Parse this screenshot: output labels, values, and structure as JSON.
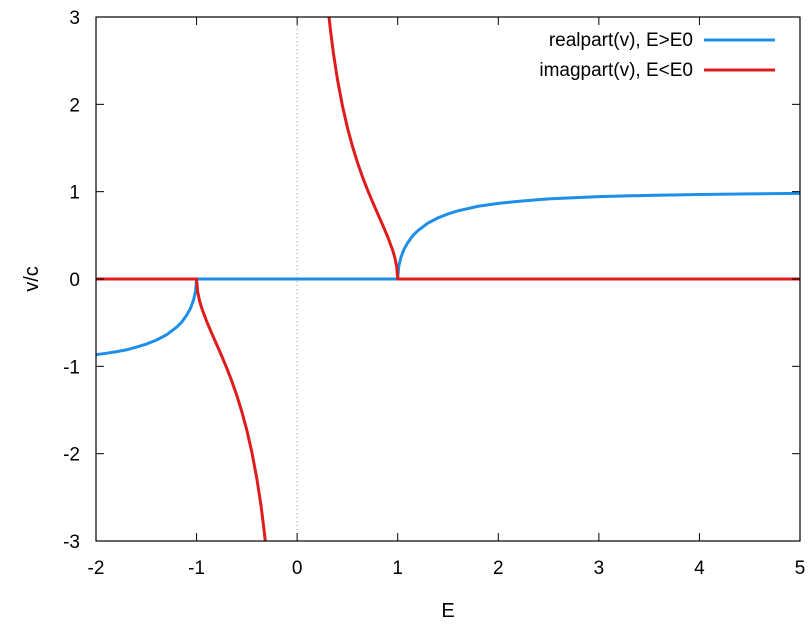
{
  "chart_data": {
    "type": "line",
    "title": "",
    "xlabel": "E",
    "ylabel": "v/c",
    "xlim": [
      -2,
      5
    ],
    "ylim": [
      -3,
      3
    ],
    "xticks": [
      "-2",
      "-1",
      "0",
      "1",
      "2",
      "3",
      "4",
      "5"
    ],
    "yticks": [
      "-3",
      "-2",
      "-1",
      "0",
      "1",
      "2",
      "3"
    ],
    "grid": false,
    "zero_line": "x = 0 (dotted)",
    "legend_position": "top-right",
    "series": [
      {
        "name": "realpart(v), E>E0",
        "color": "#1e8fe8",
        "x": [
          -2,
          -1.9,
          -1.8,
          -1.7,
          -1.6,
          -1.5,
          -1.4,
          -1.3,
          -1.2,
          -1.15,
          -1.1,
          -1.06,
          -1.03,
          -1.01,
          -1.0,
          0,
          1.0,
          1.01,
          1.03,
          1.06,
          1.1,
          1.15,
          1.2,
          1.3,
          1.4,
          1.5,
          1.6,
          1.8,
          2.0,
          2.25,
          2.5,
          3.0,
          3.5,
          4.0,
          4.5,
          5.0
        ],
        "y": [
          -0.866,
          -0.851,
          -0.833,
          -0.812,
          -0.781,
          -0.745,
          -0.7,
          -0.64,
          -0.553,
          -0.496,
          -0.417,
          -0.334,
          -0.24,
          -0.141,
          0.0,
          0.0,
          0.0,
          0.141,
          0.24,
          0.334,
          0.417,
          0.496,
          0.553,
          0.64,
          0.7,
          0.745,
          0.781,
          0.833,
          0.866,
          0.895,
          0.917,
          0.943,
          0.958,
          0.968,
          0.975,
          0.98
        ]
      },
      {
        "name": "imagpart(v), E<E0",
        "color": "#e01b1b",
        "segments": [
          {
            "x": [
              -2,
              -1.0,
              -0.99,
              -0.97,
              -0.95,
              -0.9,
              -0.85,
              -0.8,
              -0.75,
              -0.7,
              -0.65,
              -0.6,
              -0.55,
              -0.5,
              -0.45,
              -0.4,
              -0.36,
              -0.33,
              -0.31
            ],
            "y": [
              0.0,
              0.0,
              -0.143,
              -0.251,
              -0.329,
              -0.484,
              -0.62,
              -0.75,
              -0.882,
              -1.02,
              -1.169,
              -1.333,
              -1.52,
              -1.732,
              -1.985,
              -2.291,
              -2.59,
              -2.863,
              -3.07
            ]
          },
          {
            "x": [
              0.31,
              0.33,
              0.36,
              0.4,
              0.45,
              0.5,
              0.55,
              0.6,
              0.65,
              0.7,
              0.75,
              0.8,
              0.85,
              0.9,
              0.95,
              0.97,
              0.99,
              1.0,
              5.0
            ],
            "y": [
              3.07,
              2.863,
              2.59,
              2.291,
              1.985,
              1.732,
              1.52,
              1.333,
              1.169,
              1.02,
              0.882,
              0.75,
              0.62,
              0.484,
              0.329,
              0.251,
              0.143,
              0.0,
              0.0
            ]
          }
        ]
      }
    ]
  }
}
